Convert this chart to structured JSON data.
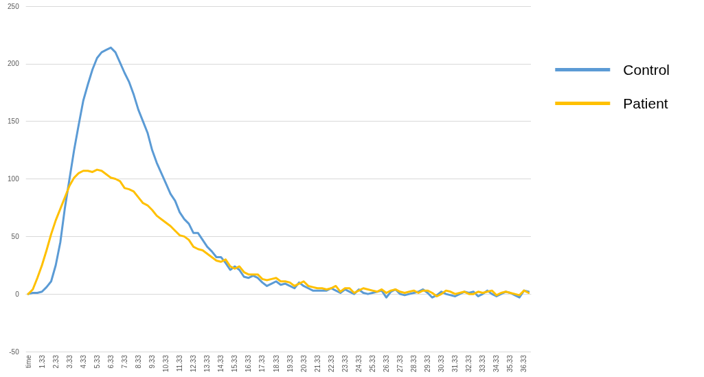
{
  "chart_data": {
    "type": "line",
    "categories": [
      "time",
      null,
      null,
      "1.33",
      null,
      null,
      "2.33",
      null,
      null,
      "3.33",
      null,
      null,
      "4.33",
      null,
      null,
      "5.33",
      null,
      null,
      "6.33",
      null,
      null,
      "7.33",
      null,
      null,
      "8.33",
      null,
      null,
      "9.33",
      null,
      null,
      "10.33",
      null,
      null,
      "11.33",
      null,
      null,
      "12.33",
      null,
      null,
      "13.33",
      null,
      null,
      "14.33",
      null,
      null,
      "15.33",
      null,
      null,
      "16.33",
      null,
      null,
      "17.33",
      null,
      null,
      "18.33",
      null,
      null,
      "19.33",
      null,
      null,
      "20.33",
      null,
      null,
      "21.33",
      null,
      null,
      "22.33",
      null,
      null,
      "23.33",
      null,
      null,
      "24.33",
      null,
      null,
      "25.33",
      null,
      null,
      "26.33",
      null,
      null,
      "27.33",
      null,
      null,
      "28.33",
      null,
      null,
      "29.33",
      null,
      null,
      "30.33",
      null,
      null,
      "31.33",
      null,
      null,
      "32.33",
      null,
      null,
      "33.33",
      null,
      null,
      "34.33",
      null,
      null,
      "35.33",
      null,
      null,
      "36.33",
      null
    ],
    "series": [
      {
        "name": "Control",
        "color": "#5b9bd5",
        "values": [
          0,
          1,
          1,
          2,
          6,
          11,
          25,
          45,
          75,
          100,
          125,
          147,
          168,
          182,
          195,
          205,
          210,
          212,
          214,
          210,
          201,
          192,
          184,
          173,
          160,
          150,
          140,
          125,
          114,
          105,
          96,
          87,
          81,
          71,
          65,
          61,
          53,
          53,
          47,
          41,
          37,
          32,
          32,
          27,
          21,
          24,
          21,
          15,
          14,
          16,
          14,
          10,
          7,
          9,
          11,
          8,
          9,
          7,
          5,
          10,
          7,
          5,
          3,
          3,
          3,
          3,
          5,
          3,
          1,
          4,
          2,
          0,
          4,
          1,
          0,
          1,
          2,
          3,
          -3,
          2,
          4,
          0,
          -1,
          0,
          1,
          2,
          4,
          1,
          -3,
          -1,
          2,
          0,
          -1,
          -2,
          0,
          2,
          1,
          2,
          -2,
          0,
          3,
          0,
          -2,
          0,
          2,
          1,
          -1,
          -3,
          3,
          2
        ]
      },
      {
        "name": "Patient",
        "color": "#ffc000",
        "values": [
          0,
          4,
          14,
          25,
          38,
          52,
          64,
          74,
          84,
          94,
          101,
          105,
          107,
          107,
          106,
          108,
          107,
          104,
          101,
          100,
          98,
          92,
          91,
          89,
          84,
          79,
          77,
          73,
          68,
          65,
          62,
          59,
          55,
          51,
          50,
          47,
          41,
          39,
          38,
          35,
          32,
          29,
          28,
          30,
          24,
          22,
          24,
          19,
          17,
          17,
          17,
          13,
          12,
          13,
          14,
          11,
          11,
          10,
          7,
          9,
          11,
          7,
          6,
          5,
          5,
          4,
          5,
          7,
          2,
          5,
          5,
          1,
          3,
          5,
          4,
          3,
          2,
          4,
          1,
          3,
          4,
          2,
          1,
          2,
          3,
          1,
          3,
          3,
          1,
          -2,
          0,
          3,
          2,
          0,
          1,
          2,
          0,
          0,
          2,
          1,
          2,
          3,
          -1,
          1,
          2,
          1,
          0,
          -1,
          3,
          1
        ]
      }
    ],
    "ylim": [
      -50,
      250
    ],
    "yticks": [
      -50,
      0,
      50,
      100,
      150,
      200,
      250
    ],
    "grid": "y",
    "legend": "right",
    "marker": "none",
    "line_style": "solid"
  }
}
